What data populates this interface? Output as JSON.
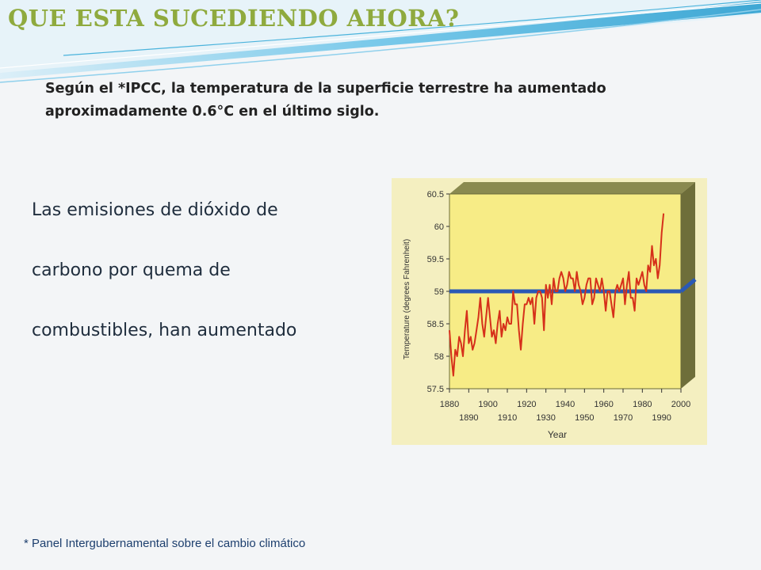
{
  "slide": {
    "title": "QUE ESTA SUCEDIENDO AHORA?",
    "intro": "Según el *IPCC, la temperatura de la superficie terrestre ha aumentado aproximadamente 0.6°C en el último siglo.",
    "body_lines": [
      "Las emisiones de dióxido de",
      "carbono por quema de",
      "combustibles, han aumentado"
    ],
    "footnote": "* Panel Intergubernamental sobre el cambio climático"
  },
  "colors": {
    "title": "#8faa3e",
    "swoosh": "#4ab3dc",
    "plot_bg": "#f7ec86",
    "plot_side": "#6e6e3a",
    "series_line": "#d6301a",
    "reference_line": "#2a59b5"
  },
  "chart_data": {
    "type": "line",
    "title": "",
    "xlabel": "Year",
    "ylabel": "Temperature (degrees Fahrenheit)",
    "xlim": [
      1880,
      2000
    ],
    "ylim": [
      57.5,
      60.5
    ],
    "x_ticks_top": [
      "1880",
      "1900",
      "1920",
      "1940",
      "1960",
      "1980",
      "2000"
    ],
    "x_ticks_bottom": [
      "1890",
      "1910",
      "1930",
      "1950",
      "1970",
      "1990"
    ],
    "y_ticks": [
      "57.5",
      "58",
      "58.5",
      "59",
      "59.5",
      "60",
      "60.5"
    ],
    "reference_line": {
      "y": 59
    },
    "series": [
      {
        "x": [
          1880,
          1881,
          1882,
          1883,
          1884,
          1885,
          1886,
          1887,
          1888,
          1889,
          1890,
          1891,
          1892,
          1893,
          1894,
          1895,
          1896,
          1897,
          1898,
          1899,
          1900,
          1901,
          1902,
          1903,
          1904,
          1905,
          1906,
          1907,
          1908,
          1909,
          1910,
          1911,
          1912,
          1913,
          1914,
          1915,
          1916,
          1917,
          1918,
          1919,
          1920,
          1921,
          1922,
          1923,
          1924,
          1925,
          1926,
          1927,
          1928,
          1929,
          1930,
          1931,
          1932,
          1933,
          1934,
          1935,
          1936,
          1937,
          1938,
          1939,
          1940,
          1941,
          1942,
          1943,
          1944,
          1945,
          1946,
          1947,
          1948,
          1949,
          1950,
          1951,
          1952,
          1953,
          1954,
          1955,
          1956,
          1957,
          1958,
          1959,
          1960,
          1961,
          1962,
          1963,
          1964,
          1965,
          1966,
          1967,
          1968,
          1969,
          1970,
          1971,
          1972,
          1973,
          1974,
          1975,
          1976,
          1977,
          1978,
          1979,
          1980,
          1981,
          1982,
          1983,
          1984,
          1985,
          1986,
          1987,
          1988,
          1989,
          1990,
          1991
        ],
        "y": [
          58.4,
          58.0,
          57.7,
          58.1,
          58.0,
          58.3,
          58.2,
          58.0,
          58.4,
          58.7,
          58.2,
          58.3,
          58.1,
          58.2,
          58.4,
          58.6,
          58.9,
          58.5,
          58.3,
          58.6,
          58.9,
          58.6,
          58.3,
          58.4,
          58.2,
          58.5,
          58.7,
          58.3,
          58.5,
          58.4,
          58.6,
          58.5,
          58.5,
          59.0,
          58.8,
          58.8,
          58.4,
          58.1,
          58.5,
          58.8,
          58.8,
          58.9,
          58.8,
          58.9,
          58.5,
          58.9,
          59.0,
          59.0,
          58.9,
          58.4,
          59.1,
          58.9,
          59.1,
          58.8,
          59.2,
          59.0,
          59.0,
          59.2,
          59.3,
          59.2,
          59.0,
          59.1,
          59.3,
          59.2,
          59.2,
          59.0,
          59.3,
          59.1,
          59.0,
          58.8,
          58.9,
          59.1,
          59.2,
          59.2,
          58.8,
          58.9,
          59.2,
          59.1,
          59.0,
          59.2,
          59.0,
          58.7,
          59.0,
          59.0,
          58.8,
          58.6,
          59.0,
          59.1,
          59.0,
          59.1,
          59.2,
          58.8,
          59.1,
          59.3,
          58.9,
          58.9,
          58.7,
          59.2,
          59.1,
          59.2,
          59.3,
          59.1,
          59.0,
          59.4,
          59.3,
          59.7,
          59.4,
          59.5,
          59.2,
          59.4,
          59.9,
          60.2
        ]
      }
    ]
  }
}
